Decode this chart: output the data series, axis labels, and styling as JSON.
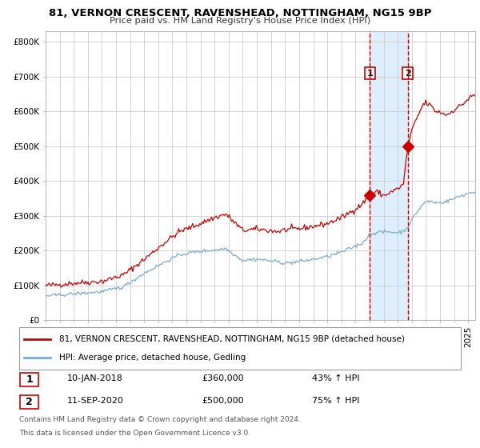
{
  "title_line1": "81, VERNON CRESCENT, RAVENSHEAD, NOTTINGHAM, NG15 9BP",
  "title_line2": "Price paid vs. HM Land Registry's House Price Index (HPI)",
  "legend_red": "81, VERNON CRESCENT, RAVENSHEAD, NOTTINGHAM, NG15 9BP (detached house)",
  "legend_blue": "HPI: Average price, detached house, Gedling",
  "annotation1_label": "1",
  "annotation1_date": "10-JAN-2018",
  "annotation1_price": "£360,000",
  "annotation1_hpi": "43% ↑ HPI",
  "annotation1_value": 360000,
  "annotation1_year": 2018.03,
  "annotation2_label": "2",
  "annotation2_date": "11-SEP-2020",
  "annotation2_price": "£500,000",
  "annotation2_hpi": "75% ↑ HPI",
  "annotation2_value": 500000,
  "annotation2_year": 2020.71,
  "shade_start": 2018.03,
  "shade_end": 2020.71,
  "yticks": [
    0,
    100000,
    200000,
    300000,
    400000,
    500000,
    600000,
    700000,
    800000
  ],
  "ytick_labels": [
    "£0",
    "£100K",
    "£200K",
    "£300K",
    "£400K",
    "£500K",
    "£600K",
    "£700K",
    "£800K"
  ],
  "ymax": 830000,
  "xmin": 1995.0,
  "xmax": 2025.5,
  "red_color": "#cc0000",
  "blue_color": "#7aadd4",
  "shade_color": "#ddeeff",
  "grid_color": "#cccccc",
  "background_color": "#ffffff",
  "footer_line1": "Contains HM Land Registry data © Crown copyright and database right 2024.",
  "footer_line2": "This data is licensed under the Open Government Licence v3.0."
}
